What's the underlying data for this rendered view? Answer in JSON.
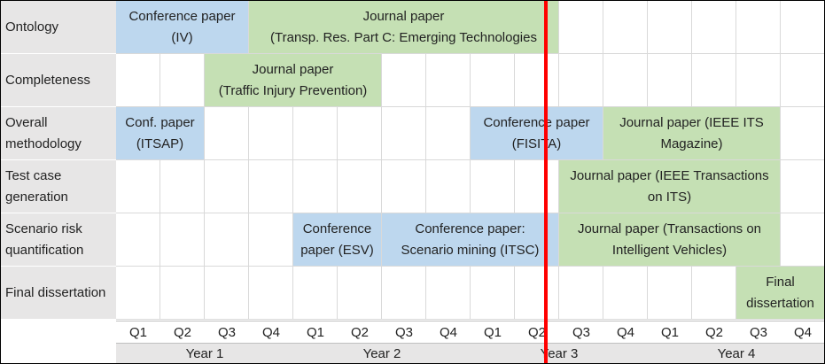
{
  "chart_data": {
    "type": "gantt",
    "rows": [
      "Ontology",
      "Completeness",
      "Overall methodology",
      "Test case generation",
      "Scenario risk quantification",
      "Final dissertation"
    ],
    "quarters": [
      "Q1",
      "Q2",
      "Q3",
      "Q4",
      "Q1",
      "Q2",
      "Q3",
      "Q4",
      "Q1",
      "Q2",
      "Q3",
      "Q4",
      "Q1",
      "Q2",
      "Q3",
      "Q4"
    ],
    "years": [
      "Year 1",
      "Year 2",
      "Year 3",
      "Year 4"
    ],
    "colors": {
      "conference": "#bdd7ee",
      "journal": "#c5e0b4",
      "current_marker": "#ff0000"
    },
    "tasks": [
      {
        "row": 0,
        "start": 0,
        "end": 3,
        "kind": "conference",
        "label": "Conference paper\n(IV)"
      },
      {
        "row": 0,
        "start": 3,
        "end": 10,
        "kind": "journal",
        "label": "Journal paper\n(Transp. Res. Part C: Emerging Technologies"
      },
      {
        "row": 1,
        "start": 2,
        "end": 6,
        "kind": "journal",
        "label": "Journal paper\n(Traffic Injury Prevention)"
      },
      {
        "row": 2,
        "start": 0,
        "end": 2,
        "kind": "conference",
        "label": "Conf. paper\n(ITSAP)"
      },
      {
        "row": 2,
        "start": 8,
        "end": 11,
        "kind": "conference",
        "label": "Conference paper\n(FISITA)"
      },
      {
        "row": 2,
        "start": 11,
        "end": 15,
        "kind": "journal",
        "label": "Journal paper (IEEE ITS\nMagazine)"
      },
      {
        "row": 3,
        "start": 10,
        "end": 15,
        "kind": "journal",
        "label": "Journal paper (IEEE Transactions\non ITS)"
      },
      {
        "row": 4,
        "start": 4,
        "end": 6,
        "kind": "conference",
        "label": "Conference\npaper (ESV)"
      },
      {
        "row": 4,
        "start": 6,
        "end": 10,
        "kind": "conference",
        "label": "Conference paper:\nScenario mining (ITSC)"
      },
      {
        "row": 4,
        "start": 10,
        "end": 15,
        "kind": "journal",
        "label": "Journal paper (Transactions on\nIntelligent Vehicles)"
      },
      {
        "row": 5,
        "start": 14,
        "end": 16,
        "kind": "journal",
        "label": "Final\ndissertation"
      }
    ],
    "current_time_quarter": 9.7
  }
}
